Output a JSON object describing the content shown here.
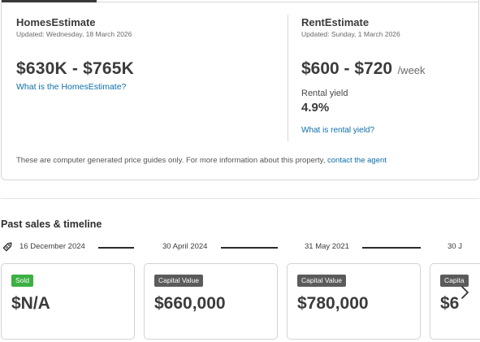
{
  "homes_estimate": {
    "title": "HomesEstimate",
    "updated": "Updated: Wednesday, 18 March 2026",
    "range": "$630K - $765K",
    "link_label": "What is the HomesEstimate?"
  },
  "rent_estimate": {
    "title": "RentEstimate",
    "updated": "Updated: Sunday, 1 March 2026",
    "range": "$600 - $720",
    "unit": "/week",
    "yield_label": "Rental yield",
    "yield_value": "4.9%",
    "yield_link": "What is rental yield?"
  },
  "disclaimer": {
    "text": "These are computer generated price guides only. For more information about this property, ",
    "link": "contact the agent"
  },
  "past_sales": {
    "title": "Past sales & timeline",
    "timeline_dates": [
      "16 December 2024",
      "30 April 2024",
      "31 May 2021",
      "30 J"
    ],
    "cards": [
      {
        "badge": "Sold",
        "badge_type": "sold",
        "price": "$N/A"
      },
      {
        "badge": "Capital Value",
        "badge_type": "cv",
        "price": "$660,000"
      },
      {
        "badge": "Capital Value",
        "badge_type": "cv",
        "price": "$780,000"
      },
      {
        "badge": "Capita",
        "badge_type": "cv",
        "price": "$6"
      }
    ]
  },
  "colors": {
    "link": "#0d6ea8",
    "sold_badge": "#3cb043",
    "capital_value_badge": "#5b5b5b",
    "text_dark": "#3b3b3b"
  },
  "icons": {
    "timeline_start": "price-tag-icon",
    "next": "chevron-right-icon"
  }
}
